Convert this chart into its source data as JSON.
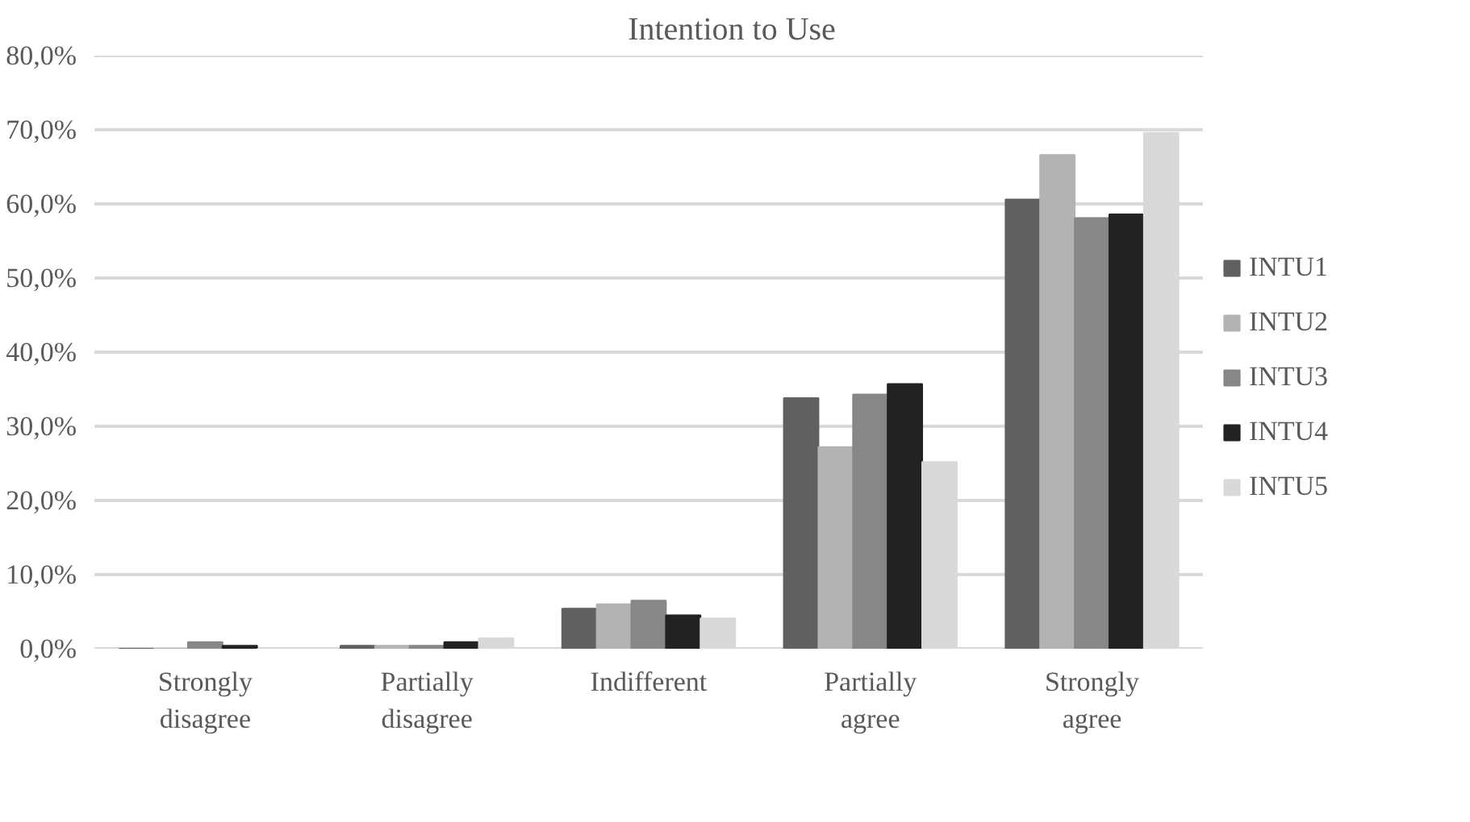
{
  "chart_data": {
    "type": "bar",
    "title": "Intention to Use",
    "categories": [
      "Strongly disagree",
      "Partially disagree",
      "Indifferent",
      "Partially agree",
      "Strongly agree"
    ],
    "series": [
      {
        "name": "INTU1",
        "color": "#606060",
        "values": [
          0,
          0.4,
          5.4,
          33.8,
          60.6
        ]
      },
      {
        "name": "INTU2",
        "color": "#b3b3b3",
        "values": [
          0,
          0.4,
          6.0,
          27.2,
          66.6
        ]
      },
      {
        "name": "INTU3",
        "color": "#878787",
        "values": [
          0.9,
          0.4,
          6.5,
          34.3,
          58.1
        ]
      },
      {
        "name": "INTU4",
        "color": "#222222",
        "values": [
          0.4,
          0.9,
          4.5,
          35.7,
          58.6
        ]
      },
      {
        "name": "INTU5",
        "color": "#d9d9d9",
        "values": [
          0,
          1.4,
          4.1,
          25.2,
          69.6
        ]
      }
    ],
    "ylim": [
      0,
      80
    ],
    "yticks": [
      {
        "value": 0,
        "label": "0,0%"
      },
      {
        "value": 10,
        "label": "10,0%"
      },
      {
        "value": 20,
        "label": "20,0%"
      },
      {
        "value": 30,
        "label": "30,0%"
      },
      {
        "value": 40,
        "label": "40,0%"
      },
      {
        "value": 50,
        "label": "50,0%"
      },
      {
        "value": 60,
        "label": "60,0%"
      },
      {
        "value": 70,
        "label": "70,0%"
      },
      {
        "value": 80,
        "label": "80,0%"
      }
    ],
    "grid": "y",
    "legend": "right"
  }
}
